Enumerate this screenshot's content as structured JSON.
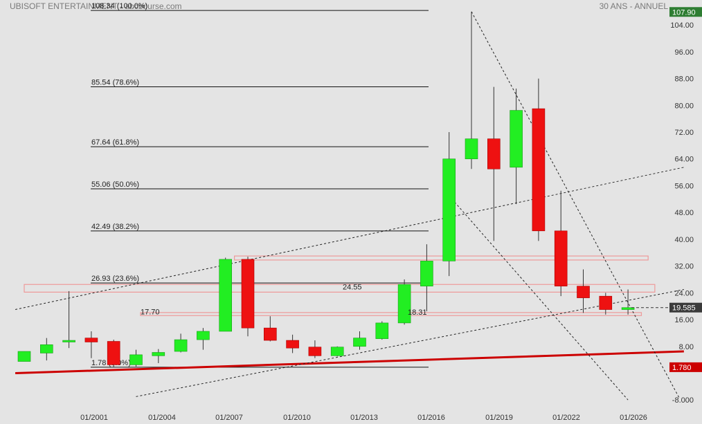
{
  "header": {
    "title": "UBISOFT ENTERTAINMENT - abcbourse.com",
    "period": "30 ANS - ANNUEL"
  },
  "colors": {
    "background": "#e4e4e4",
    "up": "#22ee22",
    "down": "#ee1111",
    "support_line": "#cc0000",
    "last_price_tag": "#2e7d32",
    "low_tag": "#cc0000",
    "zone_stroke": "#ee9999"
  },
  "chart_data": {
    "type": "candlestick",
    "ylim": [
      -8,
      108
    ],
    "y_ticks": [
      "104.00",
      "96.00",
      "88.00",
      "80.00",
      "72.00",
      "64.00",
      "56.00",
      "48.00",
      "40.00",
      "32.00",
      "24.00",
      "16.00",
      "8.00",
      "-8.000"
    ],
    "x_ticks": [
      "01/2001",
      "01/2004",
      "01/2007",
      "01/2010",
      "01/2013",
      "01/2016",
      "01/2019",
      "01/2022",
      "01/2026"
    ],
    "candles": [
      {
        "year": 1998,
        "open": 3.5,
        "high": 6.5,
        "low": 3.5,
        "close": 6.5
      },
      {
        "year": 1999,
        "open": 6.0,
        "high": 10.5,
        "low": 3.8,
        "close": 8.5
      },
      {
        "year": 2000,
        "open": 9.3,
        "high": 24.5,
        "low": 7.5,
        "close": 9.8
      },
      {
        "year": 2001,
        "open": 10.5,
        "high": 12.5,
        "low": 4.5,
        "close": 9.3
      },
      {
        "year": 2002,
        "open": 9.5,
        "high": 10.0,
        "low": 1.8,
        "close": 2.5
      },
      {
        "year": 2003,
        "open": 2.5,
        "high": 7.0,
        "low": 2.0,
        "close": 5.5
      },
      {
        "year": 2004,
        "open": 5.2,
        "high": 7.2,
        "low": 3.0,
        "close": 6.2
      },
      {
        "year": 2005,
        "open": 6.5,
        "high": 11.8,
        "low": 6.2,
        "close": 10.0
      },
      {
        "year": 2006,
        "open": 10.0,
        "high": 13.5,
        "low": 7.0,
        "close": 12.5
      },
      {
        "year": 2007,
        "open": 12.5,
        "high": 34.5,
        "low": 12.5,
        "close": 34.0
      },
      {
        "year": 2008,
        "open": 34.0,
        "high": 34.8,
        "low": 11.0,
        "close": 13.5
      },
      {
        "year": 2009,
        "open": 13.5,
        "high": 17.0,
        "low": 9.5,
        "close": 9.8
      },
      {
        "year": 2010,
        "open": 9.8,
        "high": 11.5,
        "low": 6.0,
        "close": 7.5
      },
      {
        "year": 2011,
        "open": 7.8,
        "high": 9.8,
        "low": 4.5,
        "close": 5.2
      },
      {
        "year": 2012,
        "open": 5.2,
        "high": 8.0,
        "low": 5.0,
        "close": 7.8
      },
      {
        "year": 2013,
        "open": 8.0,
        "high": 12.5,
        "low": 7.0,
        "close": 10.5
      },
      {
        "year": 2014,
        "open": 10.3,
        "high": 15.5,
        "low": 10.0,
        "close": 15.0
      },
      {
        "year": 2015,
        "open": 15.0,
        "high": 28.0,
        "low": 14.5,
        "close": 26.5
      },
      {
        "year": 2016,
        "open": 26.0,
        "high": 38.5,
        "low": 18.5,
        "close": 33.5
      },
      {
        "year": 2017,
        "open": 33.5,
        "high": 72.0,
        "low": 29.0,
        "close": 64.0
      },
      {
        "year": 2018,
        "open": 64.0,
        "high": 107.9,
        "low": 61.0,
        "close": 70.0
      },
      {
        "year": 2019,
        "open": 70.0,
        "high": 85.5,
        "low": 39.5,
        "close": 61.0
      },
      {
        "year": 2020,
        "open": 61.5,
        "high": 85.0,
        "low": 50.5,
        "close": 78.5
      },
      {
        "year": 2021,
        "open": 79.0,
        "high": 88.0,
        "low": 39.5,
        "close": 42.5
      },
      {
        "year": 2022,
        "open": 42.5,
        "high": 54.5,
        "low": 23.0,
        "close": 26.0
      },
      {
        "year": 2023,
        "open": 26.0,
        "high": 31.0,
        "low": 18.0,
        "close": 22.5
      },
      {
        "year": 2024,
        "open": 23.0,
        "high": 24.0,
        "low": 17.5,
        "close": 19.0
      },
      {
        "year": 2025,
        "open": 19.0,
        "high": 25.0,
        "low": 17.5,
        "close": 19.585
      }
    ],
    "fib_levels": [
      {
        "label": "108.34  (100.0%)",
        "value": 108.34
      },
      {
        "label": "85.54  (78.6%)",
        "value": 85.54
      },
      {
        "label": "67.64  (61.8%)",
        "value": 67.64
      },
      {
        "label": "55.06  (50.0%)",
        "value": 55.06
      },
      {
        "label": "42.49  (38.2%)",
        "value": 42.49
      },
      {
        "label": "26.93  (23.6%)",
        "value": 26.93
      },
      {
        "label": "1.78  (0.0%)",
        "value": 1.78
      }
    ],
    "zones": [
      {
        "label": "24.55",
        "low": 24.2,
        "high": 26.5,
        "from_year": 1998,
        "to_year": 2026.2
      },
      {
        "label": "17.70",
        "low": 17.2,
        "high": 18.1,
        "from_year": 2003.2,
        "to_year": 2025.6
      },
      {
        "label": "",
        "low": 33.8,
        "high": 35.0,
        "from_year": 2007.4,
        "to_year": 2025.9
      }
    ],
    "annotations": [
      {
        "label": "18.31",
        "value": 18.31,
        "year": 2015.4
      }
    ],
    "trendlines": [
      {
        "kind": "support",
        "style": "solid",
        "from": [
          1997.6,
          0.0
        ],
        "to": [
          2027.5,
          6.5
        ]
      },
      {
        "kind": "channel",
        "style": "dotted",
        "from": [
          1997.6,
          19.0
        ],
        "to": [
          2027.5,
          61.5
        ]
      },
      {
        "kind": "channel",
        "style": "dotted",
        "from": [
          2003.0,
          -7.0
        ],
        "to": [
          2027.5,
          25.0
        ]
      },
      {
        "kind": "resistance",
        "style": "dotted",
        "from": [
          2018.0,
          108.0
        ],
        "to": [
          2027.3,
          -7.5
        ]
      },
      {
        "kind": "trend",
        "style": "dotted",
        "from": [
          2017.0,
          53.0
        ],
        "to": [
          2025.0,
          -8.0
        ]
      }
    ],
    "last_price": "107.90",
    "current_price": "19.585",
    "low_price": "1.780"
  }
}
